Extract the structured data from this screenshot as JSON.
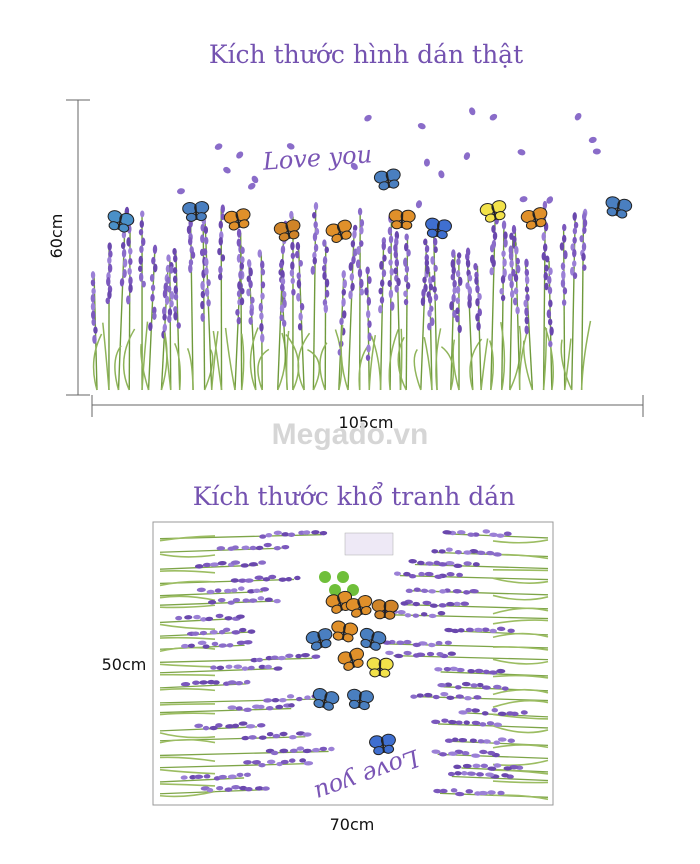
{
  "section_1": {
    "title": "Kích thước hình dán thật",
    "artwork_text": "Love you",
    "height_label": "60cm",
    "width_label": "105cm"
  },
  "watermark": "Megado.vn",
  "section_2": {
    "title": "Kích thước khổ tranh dán",
    "artwork_text": "Love you",
    "height_label": "50cm",
    "width_label": "70cm"
  }
}
